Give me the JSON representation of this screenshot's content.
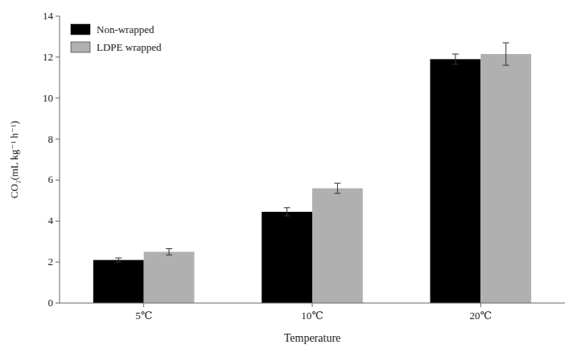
{
  "chart_data": {
    "type": "bar",
    "xlabel": "Temperature",
    "ylabel": "CO₂(mL kg⁻¹ h⁻¹)",
    "categories": [
      "5℃",
      "10℃",
      "20℃"
    ],
    "series": [
      {
        "name": "Non-wrapped",
        "color": "#000000",
        "values": [
          2.1,
          4.45,
          11.9
        ],
        "errors": [
          0.1,
          0.2,
          0.25
        ]
      },
      {
        "name": "LDPE wrapped",
        "color": "#b0b0b0",
        "values": [
          2.5,
          5.6,
          12.15
        ],
        "errors": [
          0.15,
          0.25,
          0.55
        ]
      }
    ],
    "ylim": [
      0,
      14
    ],
    "yticks": [
      0,
      2,
      4,
      6,
      8,
      10,
      12,
      14
    ],
    "legend": "upper left",
    "grid": false
  }
}
